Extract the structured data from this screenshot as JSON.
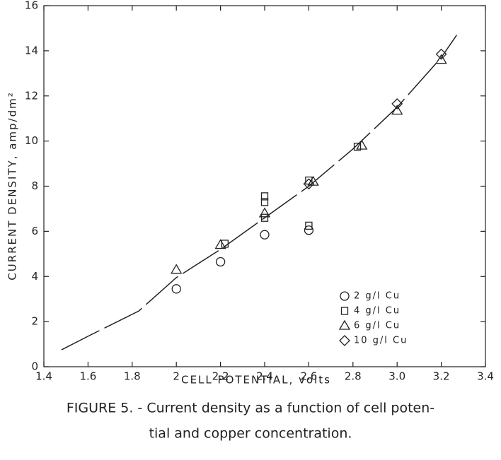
{
  "chart_data": {
    "type": "scatter",
    "xlabel": "CELL POTENTIAL, volts",
    "ylabel": "CURRENT DENSITY, amp/dm²",
    "caption": [
      "FIGURE 5. - Current density as a function of cell poten-",
      "tial and copper concentration."
    ],
    "xlim": [
      1.4,
      3.4
    ],
    "xticks": [
      1.4,
      1.6,
      1.8,
      2.0,
      2.2,
      2.4,
      2.6,
      2.8,
      {
        "value": 3.0,
        "label": "3.0"
      },
      3.2,
      3.4
    ],
    "ylim": [
      0,
      16
    ],
    "yticks": [
      0,
      2,
      4,
      6,
      8,
      10,
      12,
      14,
      16
    ],
    "series": [
      {
        "name": "2 g/l Cu",
        "marker": "circle",
        "color": "#222",
        "x": [
          2.0,
          2.2,
          2.4,
          2.6
        ],
        "values": [
          3.45,
          4.65,
          5.85,
          6.05
        ]
      },
      {
        "name": "4 g/l Cu",
        "marker": "square",
        "color": "#222",
        "x": [
          2.22,
          2.4,
          2.4,
          2.4,
          2.6,
          2.6,
          2.82
        ],
        "values": [
          5.45,
          7.55,
          7.3,
          6.6,
          8.25,
          6.25,
          9.75
        ]
      },
      {
        "name": "6 g/l Cu",
        "marker": "triangle",
        "color": "#222",
        "x": [
          2.0,
          2.2,
          2.4,
          2.62,
          2.84,
          3.0,
          3.2
        ],
        "values": [
          4.3,
          5.4,
          6.8,
          8.2,
          9.8,
          11.35,
          13.6
        ]
      },
      {
        "name": "10 g/l Cu",
        "marker": "diamond",
        "color": "#222",
        "x": [
          2.6,
          3.0,
          3.2
        ],
        "values": [
          8.1,
          11.65,
          13.85
        ]
      }
    ],
    "curve": {
      "x": [
        1.48,
        1.6,
        1.83,
        2.0,
        2.2,
        2.4,
        2.6,
        2.8,
        3.0,
        3.2,
        3.27
      ],
      "values": [
        0.75,
        1.35,
        2.47,
        3.95,
        5.2,
        6.6,
        8.0,
        9.65,
        11.5,
        13.7,
        14.7
      ],
      "color": "#222"
    }
  }
}
